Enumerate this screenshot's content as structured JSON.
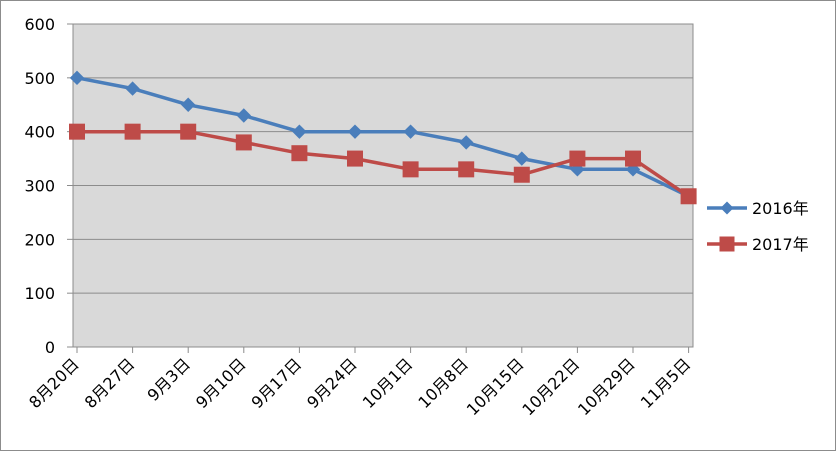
{
  "chart_data": {
    "type": "line",
    "categories": [
      "8月20日",
      "8月27日",
      "9月3日",
      "9月10日",
      "9月17日",
      "9月24日",
      "10月1日",
      "10月8日",
      "10月15日",
      "10月22日",
      "10月29日",
      "11月5日"
    ],
    "series": [
      {
        "name": "2016年",
        "color": "#4a7ebb",
        "marker": "diamond",
        "values": [
          500,
          480,
          450,
          430,
          400,
          400,
          400,
          380,
          350,
          330,
          330,
          280
        ]
      },
      {
        "name": "2017年",
        "color": "#be4b48",
        "marker": "square",
        "values": [
          400,
          400,
          400,
          380,
          360,
          350,
          330,
          330,
          320,
          350,
          350,
          280
        ]
      }
    ],
    "ylim": [
      0,
      600
    ],
    "yticks": [
      0,
      100,
      200,
      300,
      400,
      500,
      600
    ],
    "grid": true,
    "legend_position": "right",
    "plot_background": "#d9d9d9"
  }
}
